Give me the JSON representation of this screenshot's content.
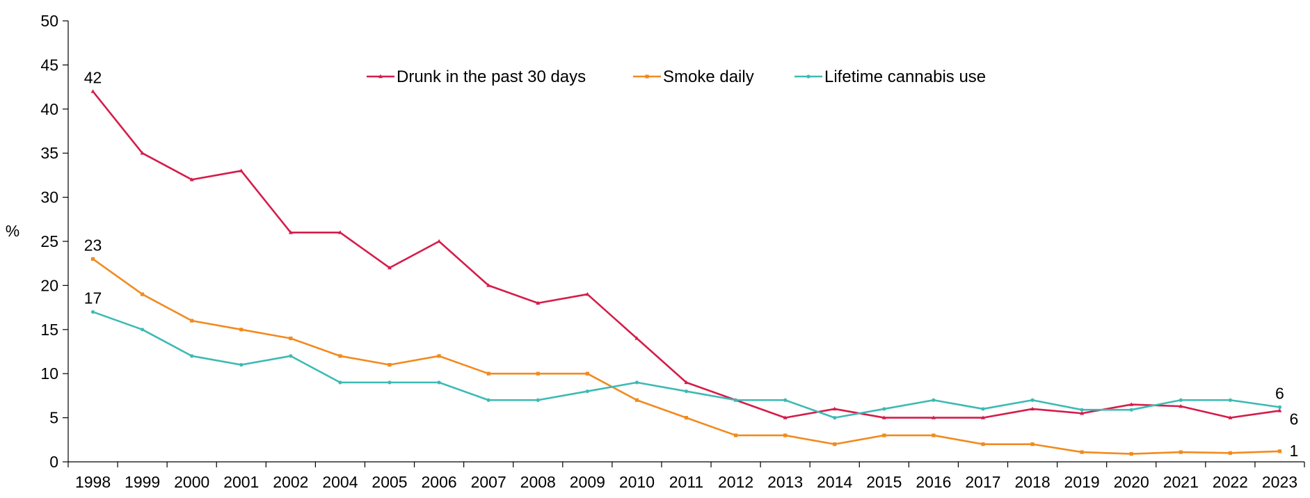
{
  "chart_data": {
    "type": "line",
    "ylabel": "%",
    "ylim": [
      0,
      50
    ],
    "y_ticks": [
      "0",
      "5",
      "10",
      "15",
      "20",
      "25",
      "30",
      "35",
      "40",
      "45",
      "50"
    ],
    "categories": [
      "1998",
      "1999",
      "2000",
      "2001",
      "2002",
      "2004",
      "2005",
      "2006",
      "2007",
      "2008",
      "2009",
      "2010",
      "2011",
      "2012",
      "2013",
      "2014",
      "2015",
      "2016",
      "2017",
      "2018",
      "2019",
      "2020",
      "2021",
      "2022",
      "2023"
    ],
    "grid": false,
    "legend_position": "top-center",
    "series": [
      {
        "name": "Drunk in the past 30 days",
        "color": "#d41c4a",
        "marker": "triangle",
        "values": [
          42,
          35,
          32,
          33,
          26,
          26,
          22,
          25,
          20,
          18,
          19,
          14,
          9,
          7,
          5,
          6,
          5,
          5,
          5,
          6,
          5.5,
          6.5,
          6.3,
          5,
          5.8
        ],
        "labels": [
          {
            "index": 0,
            "text": "42"
          },
          {
            "index": 24,
            "text": "6"
          }
        ]
      },
      {
        "name": "Smoke daily",
        "color": "#f28a1e",
        "marker": "square",
        "values": [
          23,
          19,
          16,
          15,
          14,
          12,
          11,
          12,
          10,
          10,
          10,
          7,
          5,
          3,
          3,
          2,
          3,
          3,
          2,
          2,
          1.1,
          0.9,
          1.1,
          1.0,
          1.2
        ],
        "labels": [
          {
            "index": 0,
            "text": "23"
          },
          {
            "index": 24,
            "text": "1"
          }
        ]
      },
      {
        "name": "Lifetime cannabis use",
        "color": "#3dbab4",
        "marker": "circle",
        "values": [
          17,
          15,
          12,
          11,
          12,
          9,
          9,
          9,
          7,
          7,
          8,
          9,
          8,
          7,
          7,
          5,
          6,
          7,
          6,
          7,
          5.9,
          5.9,
          7,
          7,
          6.2
        ],
        "labels": [
          {
            "index": 0,
            "text": "17"
          },
          {
            "index": 24,
            "text": "6"
          }
        ]
      }
    ]
  }
}
